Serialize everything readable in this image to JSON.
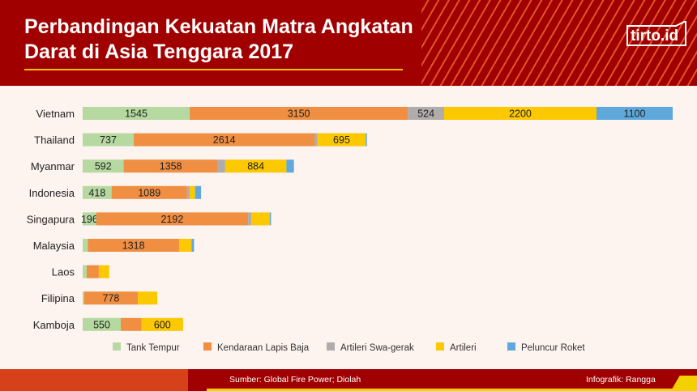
{
  "header": {
    "title": "Perbandingan Kekuatan Matra Angkatan Darat di Asia Tenggara 2017",
    "logo": "tirto.id"
  },
  "footer": {
    "source": "Sumber: Global Fire Power; Diolah",
    "credit": "Infografik: Rangga"
  },
  "chart_data": {
    "type": "bar",
    "orientation": "horizontal-stacked",
    "title": "Perbandingan Kekuatan Matra Angkatan Darat di Asia Tenggara 2017",
    "categories": [
      "Vietnam",
      "Thailand",
      "Myanmar",
      "Indonesia",
      "Singapura",
      "Malaysia",
      "Laos",
      "Filipina",
      "Kamboja"
    ],
    "legend_position": "bottom",
    "grid": false,
    "series": [
      {
        "name": "Tank Tempur",
        "color": "#b5d9a0",
        "values": [
          1545,
          737,
          592,
          418,
          196,
          74,
          58,
          20,
          550
        ],
        "labeled": [
          true,
          true,
          true,
          true,
          true,
          false,
          false,
          false,
          true
        ]
      },
      {
        "name": "Kendaraan Lapis Baja",
        "color": "#f08e42",
        "values": [
          3150,
          2614,
          1358,
          1089,
          2192,
          1318,
          175,
          778,
          300
        ],
        "labeled": [
          true,
          true,
          true,
          true,
          true,
          true,
          false,
          true,
          false
        ]
      },
      {
        "name": "Artileri Swa-gerak",
        "color": "#b0acab",
        "values": [
          524,
          40,
          108,
          37,
          48,
          0,
          0,
          0,
          0
        ],
        "labeled": [
          true,
          false,
          false,
          false,
          false,
          false,
          false,
          false,
          false
        ]
      },
      {
        "name": "Artileri",
        "color": "#fcc800",
        "values": [
          2200,
          695,
          884,
          80,
          265,
          180,
          150,
          280,
          600
        ],
        "labeled": [
          true,
          true,
          true,
          false,
          false,
          false,
          false,
          false,
          true
        ]
      },
      {
        "name": "Peluncur Roket",
        "color": "#5ea8dc",
        "values": [
          1100,
          18,
          108,
          86,
          18,
          36,
          0,
          0,
          0
        ],
        "labeled": [
          true,
          false,
          false,
          false,
          false,
          false,
          false,
          false,
          false
        ]
      }
    ]
  }
}
